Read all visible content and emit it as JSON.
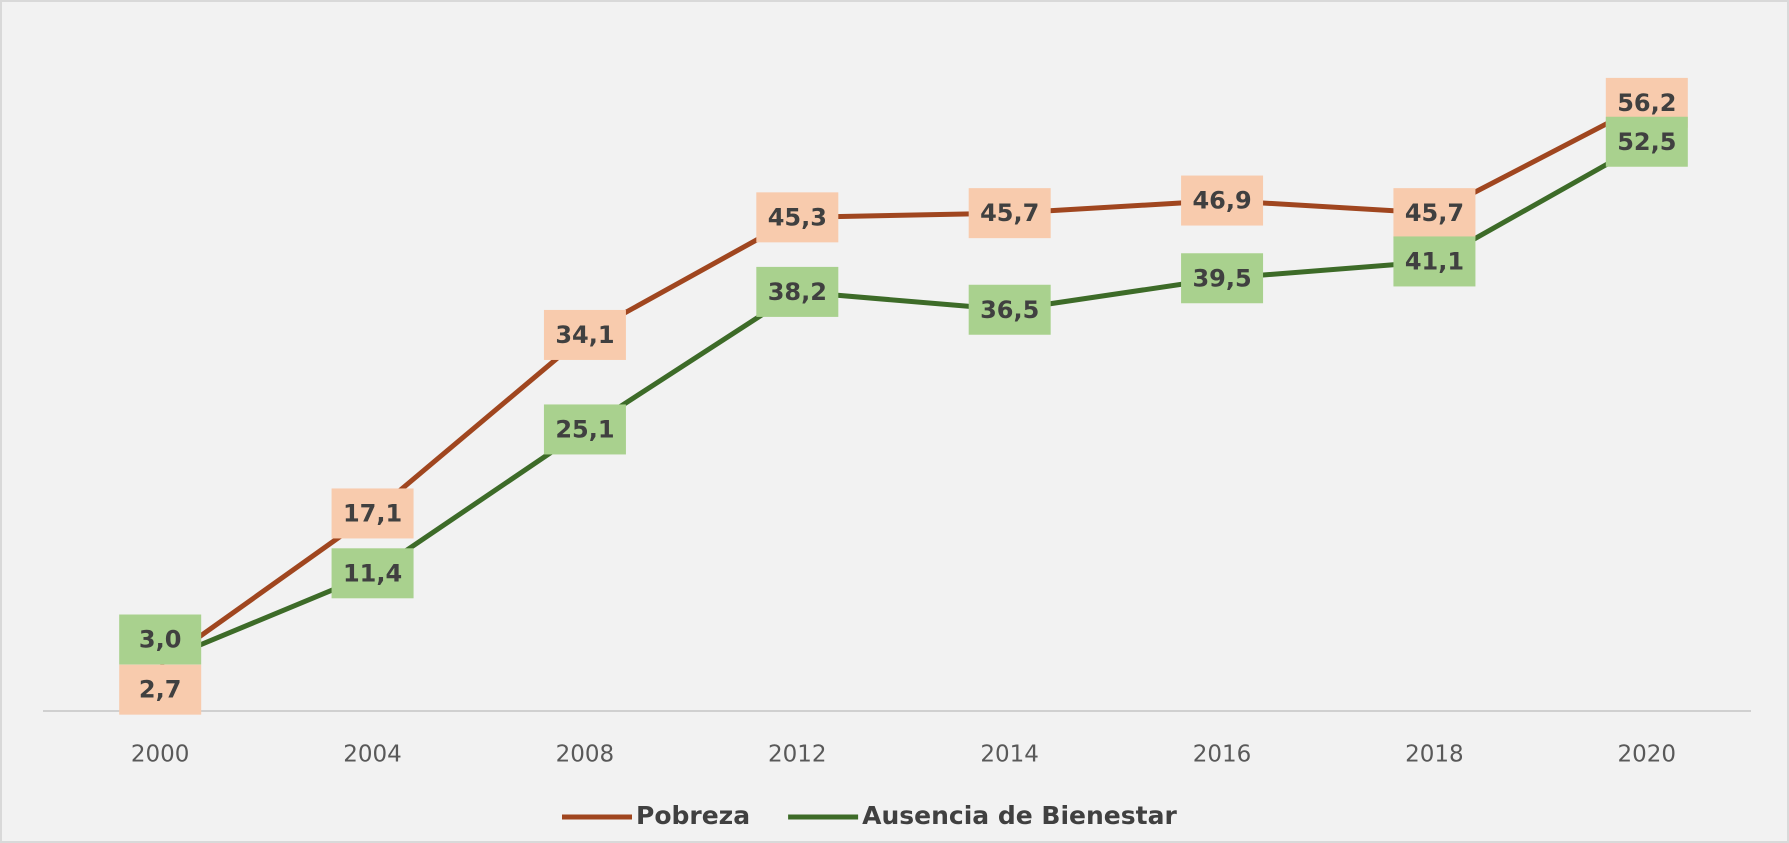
{
  "chart_data": {
    "type": "line",
    "categories": [
      "2000",
      "2004",
      "2008",
      "2012",
      "2014",
      "2016",
      "2018",
      "2020"
    ],
    "series": [
      {
        "name": "Pobreza",
        "color": "#a0461f",
        "label_color": "#f8cbad",
        "values": [
          2.7,
          17.1,
          34.1,
          45.3,
          45.7,
          46.9,
          45.7,
          56.2
        ],
        "value_labels": [
          "2,7",
          "17,1",
          "34,1",
          "45,3",
          "45,7",
          "46,9",
          "45,7",
          "56,2"
        ]
      },
      {
        "name": "Ausencia de Bienestar",
        "color": "#3d6b28",
        "label_color": "#a9d18e",
        "values": [
          3.0,
          11.4,
          25.1,
          38.2,
          36.5,
          39.5,
          41.1,
          52.5
        ],
        "value_labels": [
          "3,0",
          "11,4",
          "25,1",
          "38,2",
          "36,5",
          "39,5",
          "41,1",
          "52,5"
        ]
      }
    ],
    "ylim": [
      0,
      60
    ]
  }
}
